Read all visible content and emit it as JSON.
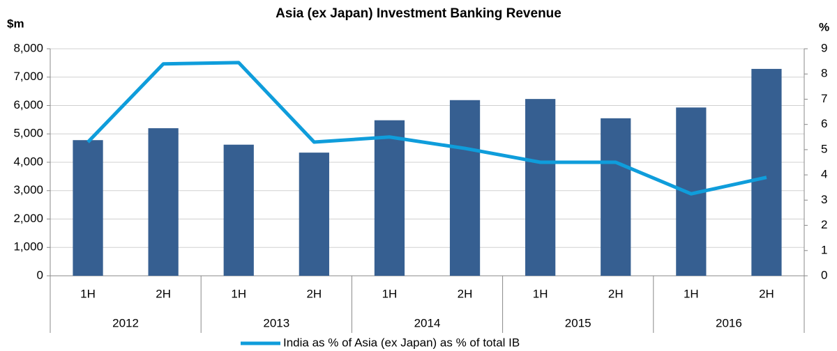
{
  "chart_data": {
    "type": "bar-line",
    "title": "Asia (ex Japan) Investment Banking Revenue",
    "y_label": "$m",
    "y2_label": "%",
    "categories": [
      "1H",
      "2H",
      "1H",
      "2H",
      "1H",
      "2H",
      "1H",
      "2H",
      "1H",
      "2H"
    ],
    "groups": [
      "2012",
      "2013",
      "2014",
      "2015",
      "2016"
    ],
    "series": [
      {
        "type": "bar",
        "color": "#365f91",
        "values": [
          4780,
          5200,
          4620,
          4340,
          5480,
          6190,
          6230,
          5550,
          5930,
          7290
        ]
      },
      {
        "type": "line",
        "name": "India as % of Asia (ex Japan) as % of total IB",
        "color": "#0f9ddb",
        "axis": "y2",
        "values": [
          5.3,
          8.4,
          8.45,
          5.3,
          5.5,
          5.05,
          4.5,
          4.5,
          3.25,
          3.9
        ]
      }
    ],
    "ylim": [
      0,
      8000
    ],
    "yticks": [
      0,
      {
        "value": 1000,
        "label": "1,000"
      },
      {
        "value": 2000,
        "label": "2,000"
      },
      {
        "value": 3000,
        "label": "3,000"
      },
      {
        "value": 4000,
        "label": "4,000"
      },
      {
        "value": 5000,
        "label": "5,000"
      },
      {
        "value": 6000,
        "label": "6,000"
      },
      {
        "value": 7000,
        "label": "7,000"
      },
      {
        "value": 8000,
        "label": "8,000"
      }
    ],
    "y2lim": [
      0,
      9
    ],
    "y2ticks": [
      0,
      1,
      2,
      3,
      4,
      5,
      6,
      7,
      8,
      9
    ],
    "grid": true,
    "legend": "bottom"
  }
}
